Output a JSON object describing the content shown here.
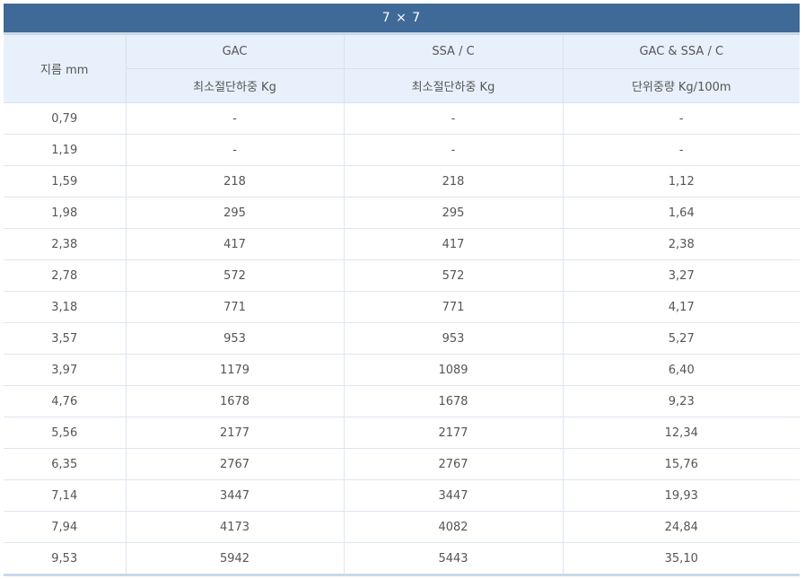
{
  "table": {
    "title": "7 × 7",
    "diameter_header": "지름 mm",
    "col_groups": [
      "GAC",
      "SSA / C",
      "GAC & SSA / C"
    ],
    "sub_headers": [
      "최소절단하중 Kg",
      "최소절단하중 Kg",
      "단위중량 Kg/100m"
    ],
    "rows": [
      [
        "0,79",
        "-",
        "-",
        "-"
      ],
      [
        "1,19",
        "-",
        "-",
        "-"
      ],
      [
        "1,59",
        "218",
        "218",
        "1,12"
      ],
      [
        "1,98",
        "295",
        "295",
        "1,64"
      ],
      [
        "2,38",
        "417",
        "417",
        "2,38"
      ],
      [
        "2,78",
        "572",
        "572",
        "3,27"
      ],
      [
        "3,18",
        "771",
        "771",
        "4,17"
      ],
      [
        "3,57",
        "953",
        "953",
        "5,27"
      ],
      [
        "3,97",
        "1179",
        "1089",
        "6,40"
      ],
      [
        "4,76",
        "1678",
        "1678",
        "9,23"
      ],
      [
        "5,56",
        "2177",
        "2177",
        "12,34"
      ],
      [
        "6,35",
        "2767",
        "2767",
        "15,76"
      ],
      [
        "7,14",
        "3447",
        "3447",
        "19,93"
      ],
      [
        "7,94",
        "4173",
        "4082",
        "24,84"
      ],
      [
        "9,53",
        "5942",
        "5443",
        "35,10"
      ]
    ]
  }
}
